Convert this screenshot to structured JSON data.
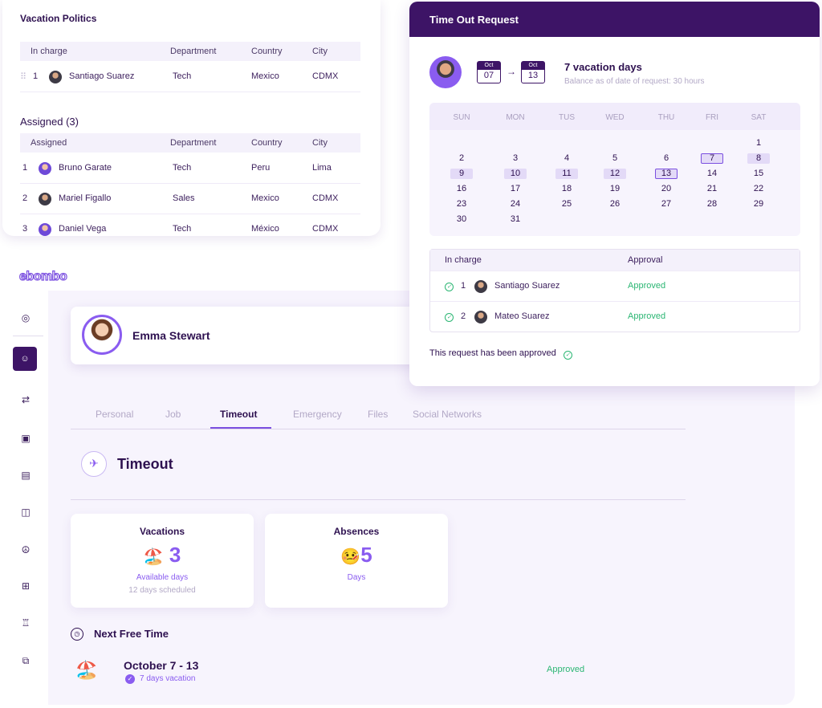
{
  "vacation_politics": {
    "title": "Vacation Politics",
    "in_charge_headers": [
      "In charge",
      "Department",
      "Country",
      "City"
    ],
    "in_charge_rows": [
      {
        "num": "1",
        "name": "Santiago Suarez",
        "department": "Tech",
        "country": "Mexico",
        "city": "CDMX"
      }
    ],
    "assigned_title": "Assigned (3)",
    "assigned_headers": [
      "Assigned",
      "Department",
      "Country",
      "City"
    ],
    "assigned_rows": [
      {
        "num": "1",
        "name": "Bruno Garate",
        "department": "Tech",
        "country": "Peru",
        "city": "Lima"
      },
      {
        "num": "2",
        "name": "Mariel Figallo",
        "department": "Sales",
        "country": "Mexico",
        "city": "CDMX"
      },
      {
        "num": "3",
        "name": "Daniel Vega",
        "department": "Tech",
        "country": "México",
        "city": "CDMX"
      }
    ]
  },
  "app": {
    "logo": "ebombo",
    "sidebar_icons": [
      "user-circle-icon",
      "smile-icon",
      "swap-icon",
      "badge-icon",
      "document-icon",
      "book-icon",
      "peace-icon",
      "grid-icon",
      "trophy-icon",
      "presentation-icon"
    ],
    "profile_name": "Emma Stewart",
    "tabs": [
      "Personal",
      "Job",
      "Timeout",
      "Emergency",
      "Files",
      "Social Networks"
    ],
    "active_tab": "Timeout",
    "section_title": "Timeout",
    "vacations": {
      "label": "Vacations",
      "emoji": "🏖️",
      "value": "3",
      "sub": "Available days",
      "sub2": "12 days scheduled"
    },
    "absences": {
      "label": "Absences",
      "emoji": "🤒",
      "value": "5",
      "sub": "Days"
    },
    "next_free_time": {
      "title": "Next Free Time",
      "emoji": "🏖️",
      "dates": "October 7 - 13",
      "detail": "7 days vacation",
      "status": "Approved"
    }
  },
  "time_out_request": {
    "title": "Time Out Request",
    "from": {
      "month": "Oct",
      "day": "07"
    },
    "to": {
      "month": "Oct",
      "day": "13"
    },
    "days": "7 vacation days",
    "balance": "Balance as of date of request: 30 hours",
    "weekdays": [
      "SUN",
      "MON",
      "TUS",
      "WED",
      "THU",
      "FRI",
      "SAT"
    ],
    "calendar_start_weekday": 6,
    "calendar_days": 31,
    "highlighted_days": [
      9,
      10,
      11,
      12
    ],
    "boxed_days": [
      7,
      13
    ],
    "soft_days": [
      8
    ],
    "approval_headers": [
      "In charge",
      "Approval"
    ],
    "approvals": [
      {
        "num": "1",
        "name": "Santiago Suarez",
        "status": "Approved"
      },
      {
        "num": "2",
        "name": "Mateo Suarez",
        "status": "Approved"
      }
    ],
    "note": "This request has been approved"
  },
  "colors": {
    "brand": "#3d1466",
    "accent": "#8a5cf0",
    "success": "#2bb673"
  }
}
